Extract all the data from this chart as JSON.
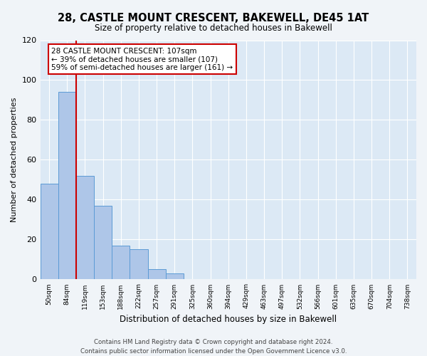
{
  "title": "28, CASTLE MOUNT CRESCENT, BAKEWELL, DE45 1AT",
  "subtitle": "Size of property relative to detached houses in Bakewell",
  "xlabel": "Distribution of detached houses by size in Bakewell",
  "ylabel": "Number of detached properties",
  "bar_labels": [
    "50sqm",
    "84sqm",
    "119sqm",
    "153sqm",
    "188sqm",
    "222sqm",
    "257sqm",
    "291sqm",
    "325sqm",
    "360sqm",
    "394sqm",
    "429sqm",
    "463sqm",
    "497sqm",
    "532sqm",
    "566sqm",
    "601sqm",
    "635sqm",
    "670sqm",
    "704sqm",
    "738sqm"
  ],
  "bar_values": [
    48,
    94,
    52,
    37,
    17,
    15,
    5,
    3,
    0,
    0,
    0,
    0,
    0,
    0,
    0,
    0,
    0,
    0,
    0,
    0,
    0
  ],
  "bar_color": "#aec6e8",
  "bar_edgecolor": "#5b9bd5",
  "background_color": "#dce9f5",
  "fig_background": "#f0f4f8",
  "ylim": [
    0,
    120
  ],
  "yticks": [
    0,
    20,
    40,
    60,
    80,
    100,
    120
  ],
  "red_line_x": 1.5,
  "annotation_title": "28 CASTLE MOUNT CRESCENT: 107sqm",
  "annotation_line1": "← 39% of detached houses are smaller (107)",
  "annotation_line2": "59% of semi-detached houses are larger (161) →",
  "annotation_box_color": "#ffffff",
  "annotation_border_color": "#cc0000",
  "footer_line1": "Contains HM Land Registry data © Crown copyright and database right 2024.",
  "footer_line2": "Contains public sector information licensed under the Open Government Licence v3.0."
}
